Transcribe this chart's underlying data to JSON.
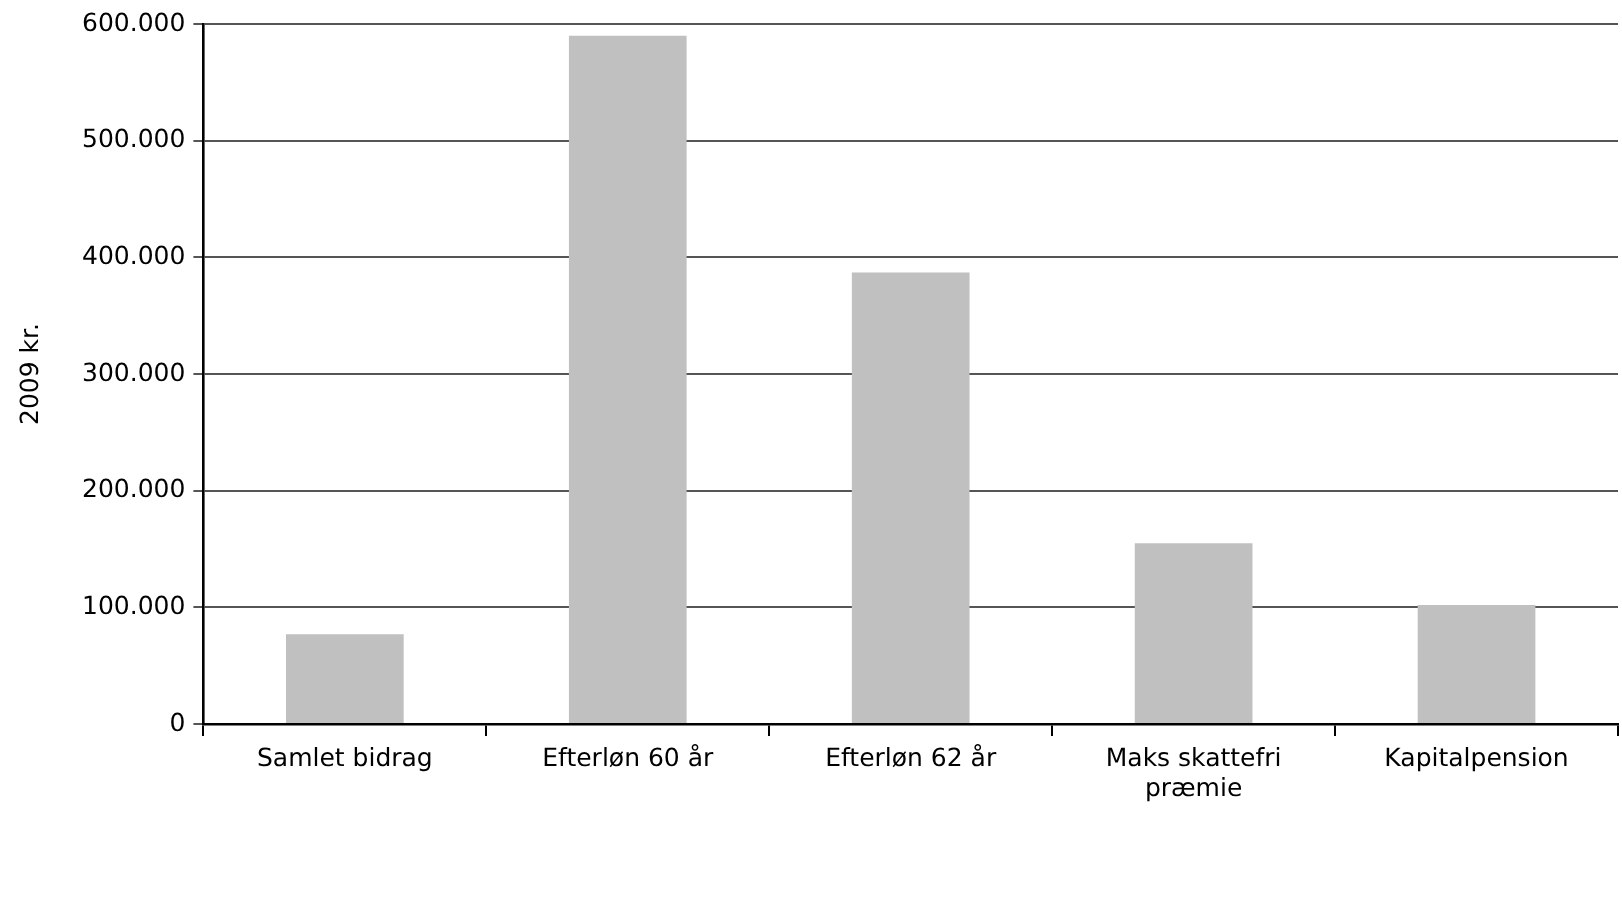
{
  "chart_data": {
    "type": "bar",
    "ylabel": "2009 kr.",
    "categories": [
      "Samlet bidrag",
      "Efterløn 60 år",
      "Efterløn 62 år",
      "Maks skattefri præmie",
      "Kapitalpension"
    ],
    "values": [
      77000,
      590000,
      387000,
      155000,
      102000
    ],
    "color": "#c0c0c0",
    "ylim": [
      0,
      600000
    ],
    "yticks": [
      {
        "value": 0,
        "label": "0"
      },
      {
        "value": 100000,
        "label": "100.000"
      },
      {
        "value": 200000,
        "label": "200.000"
      },
      {
        "value": 300000,
        "label": "300.000"
      },
      {
        "value": 400000,
        "label": "400.000"
      },
      {
        "value": 500000,
        "label": "500.000"
      },
      {
        "value": 600000,
        "label": "600.000"
      }
    ],
    "grid": "y",
    "legend": false
  }
}
